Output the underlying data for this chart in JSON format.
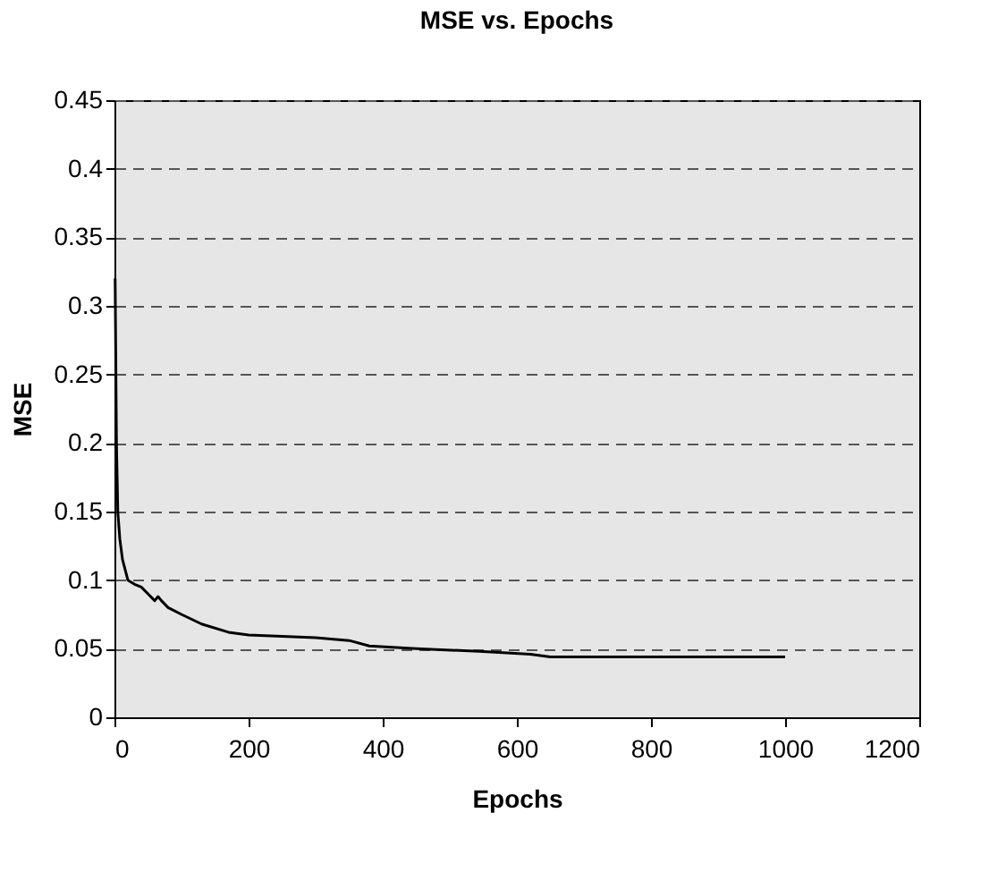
{
  "chart_data": {
    "type": "line",
    "title": "MSE vs. Epochs",
    "xlabel": "Epochs",
    "ylabel": "MSE",
    "x": [
      1,
      3,
      5,
      8,
      12,
      20,
      30,
      40,
      50,
      60,
      65,
      70,
      80,
      100,
      130,
      170,
      200,
      250,
      300,
      350,
      380,
      450,
      550,
      620,
      650,
      800,
      1000
    ],
    "series": [
      {
        "color": "#000000",
        "values": [
          0.32,
          0.2,
          0.15,
          0.13,
          0.115,
          0.1,
          0.097,
          0.095,
          0.09,
          0.085,
          0.088,
          0.085,
          0.08,
          0.075,
          0.068,
          0.062,
          0.06,
          0.059,
          0.058,
          0.056,
          0.052,
          0.05,
          0.048,
          0.046,
          0.044,
          0.044,
          0.044
        ]
      }
    ],
    "xlim": [
      0,
      1200
    ],
    "xticks": [
      0,
      200,
      400,
      600,
      800,
      1000,
      1200
    ],
    "ylim": [
      0,
      0.45
    ],
    "yticks": [
      0,
      0.05,
      0.1,
      0.15,
      0.2,
      0.25,
      0.3,
      0.35,
      0.4,
      0.45
    ],
    "grid": "y",
    "marker": "none",
    "line_style": "solid"
  }
}
